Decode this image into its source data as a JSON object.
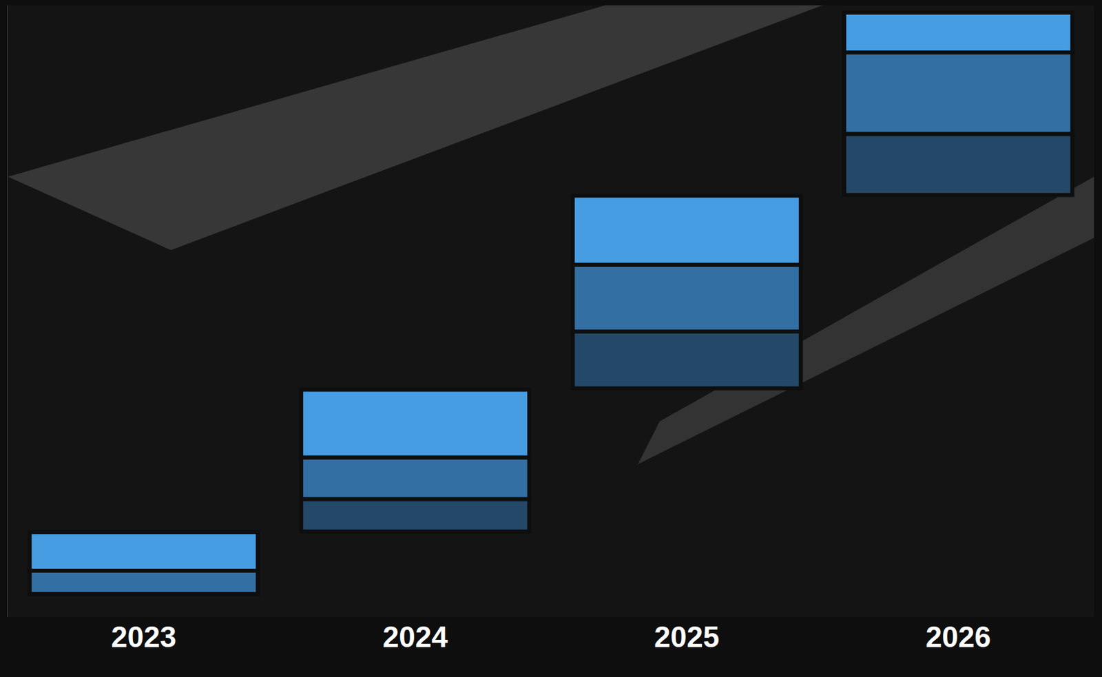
{
  "chart_data": {
    "type": "bar",
    "stacked": true,
    "categories": [
      "2023",
      "2024",
      "2025",
      "2026"
    ],
    "base": [
      3.8,
      14.0,
      37.4,
      69.0
    ],
    "series": [
      {
        "color": "#234868",
        "values": [
          null,
          5.3,
          9.3,
          10.0
        ]
      },
      {
        "color": "#336FA2",
        "values": [
          3.8,
          6.8,
          10.9,
          13.3
        ]
      },
      {
        "color": "#469DE2",
        "values": [
          6.3,
          11.1,
          11.3,
          6.5
        ]
      }
    ],
    "ylim": [
      0,
      100
    ],
    "yticks": [],
    "grid": false,
    "tick_labels": "x",
    "data_labels": false
  }
}
